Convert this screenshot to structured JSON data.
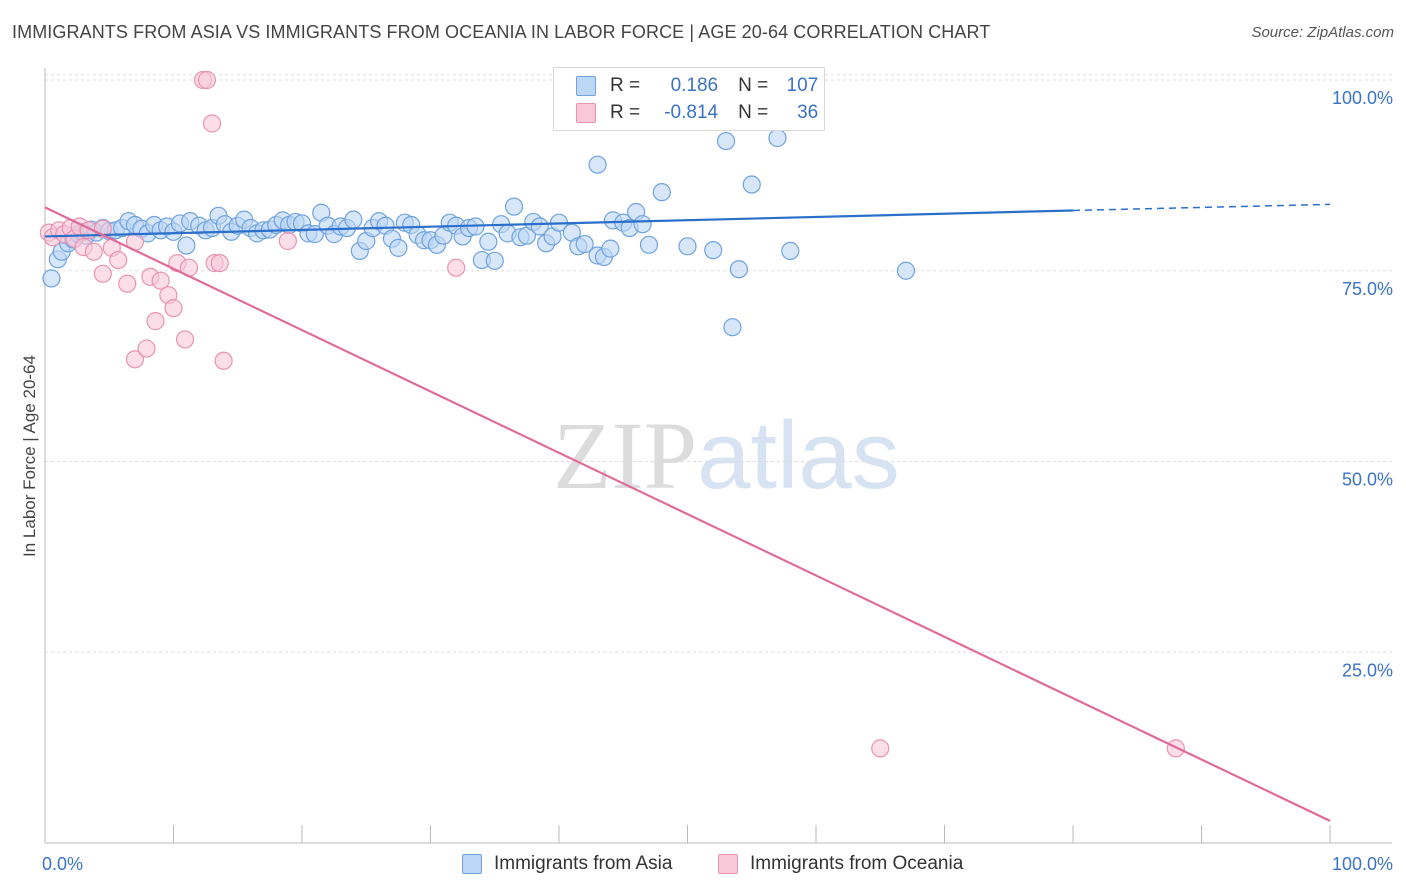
{
  "title": "IMMIGRANTS FROM ASIA VS IMMIGRANTS FROM OCEANIA IN LABOR FORCE | AGE 20-64 CORRELATION CHART",
  "source": "Source: ZipAtlas.com",
  "watermark": {
    "zip": "ZIP",
    "atlas": "atlas"
  },
  "legend": {
    "r_label": "R =",
    "n_label": "N =",
    "rows": [
      {
        "r": "0.186",
        "n": "107"
      },
      {
        "r": "-0.814",
        "n": "36"
      }
    ]
  },
  "colors": {
    "blue_fill": "#bcd6f5",
    "blue_stroke": "#6fa3e0",
    "blue_line": "#2a6fc9",
    "pink_fill": "#f9c8d8",
    "pink_stroke": "#e993b3",
    "pink_line": "#e06b98",
    "tick_label": "#3b73c4",
    "grid": "#dddddd"
  },
  "chart_data": {
    "type": "scatter",
    "title": "IMMIGRANTS FROM ASIA VS IMMIGRANTS FROM OCEANIA IN LABOR FORCE | AGE 20-64 CORRELATION CHART",
    "xlabel": "",
    "ylabel": "In Labor Force | Age 20-64",
    "xlim": [
      0,
      100
    ],
    "ylim": [
      0,
      100
    ],
    "x_tick_labels": [
      "0.0%",
      "100.0%"
    ],
    "y_ticks": [
      {
        "value": 100,
        "label": "100.0%"
      },
      {
        "value": 75,
        "label": "75.0%"
      },
      {
        "value": 50,
        "label": "50.0%"
      },
      {
        "value": 25,
        "label": "25.0%"
      }
    ],
    "grid": true,
    "legend_position": "bottom-center",
    "series": [
      {
        "name": "Immigrants from Asia",
        "color": "blue",
        "trend": {
          "x": [
            0,
            80
          ],
          "y": [
            79.5,
            82.9
          ],
          "dashed_to": [
            100,
            83.7
          ]
        },
        "points": [
          [
            0.5,
            74.0
          ],
          [
            1.0,
            76.5
          ],
          [
            1.3,
            77.5
          ],
          [
            1.8,
            78.6
          ],
          [
            2.2,
            79.1
          ],
          [
            2.6,
            79.8
          ],
          [
            2.9,
            80.1
          ],
          [
            3.2,
            79.6
          ],
          [
            3.6,
            80.4
          ],
          [
            4.0,
            80.0
          ],
          [
            4.5,
            80.6
          ],
          [
            5.0,
            80.2
          ],
          [
            5.5,
            80.3
          ],
          [
            6.0,
            80.6
          ],
          [
            6.5,
            81.5
          ],
          [
            7.0,
            81.0
          ],
          [
            7.5,
            80.5
          ],
          [
            8.0,
            79.9
          ],
          [
            8.5,
            81.0
          ],
          [
            9.0,
            80.3
          ],
          [
            9.5,
            80.8
          ],
          [
            10.0,
            80.1
          ],
          [
            10.5,
            81.2
          ],
          [
            11.0,
            78.3
          ],
          [
            11.3,
            81.5
          ],
          [
            12.0,
            80.9
          ],
          [
            12.5,
            80.3
          ],
          [
            13.0,
            80.6
          ],
          [
            13.5,
            82.2
          ],
          [
            14.0,
            81.1
          ],
          [
            14.5,
            80.1
          ],
          [
            15.0,
            80.9
          ],
          [
            15.5,
            81.7
          ],
          [
            16.0,
            80.6
          ],
          [
            16.5,
            79.9
          ],
          [
            17.0,
            80.3
          ],
          [
            17.5,
            80.4
          ],
          [
            18.0,
            81.0
          ],
          [
            18.5,
            81.6
          ],
          [
            19.0,
            81.0
          ],
          [
            19.5,
            81.4
          ],
          [
            20.0,
            81.2
          ],
          [
            20.5,
            79.9
          ],
          [
            21.0,
            79.8
          ],
          [
            21.5,
            82.6
          ],
          [
            22.0,
            80.9
          ],
          [
            22.5,
            79.8
          ],
          [
            23.0,
            80.8
          ],
          [
            23.5,
            80.6
          ],
          [
            24.0,
            81.7
          ],
          [
            24.5,
            77.6
          ],
          [
            25.0,
            78.9
          ],
          [
            25.5,
            80.6
          ],
          [
            26.0,
            81.5
          ],
          [
            26.5,
            80.9
          ],
          [
            27.0,
            79.2
          ],
          [
            27.5,
            78.0
          ],
          [
            28.0,
            81.3
          ],
          [
            28.5,
            81.0
          ],
          [
            29.0,
            79.7
          ],
          [
            29.5,
            79.0
          ],
          [
            30.0,
            79.0
          ],
          [
            30.5,
            78.4
          ],
          [
            31.0,
            79.6
          ],
          [
            31.5,
            81.3
          ],
          [
            32.0,
            80.9
          ],
          [
            32.5,
            79.5
          ],
          [
            33.0,
            80.6
          ],
          [
            33.5,
            80.8
          ],
          [
            34.0,
            76.4
          ],
          [
            34.5,
            78.8
          ],
          [
            35.0,
            76.3
          ],
          [
            35.5,
            81.1
          ],
          [
            36.0,
            79.9
          ],
          [
            36.5,
            83.4
          ],
          [
            37.0,
            79.4
          ],
          [
            37.5,
            79.6
          ],
          [
            38.0,
            81.4
          ],
          [
            38.5,
            80.8
          ],
          [
            39.0,
            78.6
          ],
          [
            39.5,
            79.5
          ],
          [
            40.0,
            81.3
          ],
          [
            41.0,
            80.0
          ],
          [
            41.5,
            78.2
          ],
          [
            42.0,
            78.5
          ],
          [
            43.0,
            77.0
          ],
          [
            43.5,
            76.8
          ],
          [
            44.0,
            77.9
          ],
          [
            44.2,
            81.6
          ],
          [
            45.0,
            81.3
          ],
          [
            45.5,
            80.6
          ],
          [
            46.0,
            82.7
          ],
          [
            46.5,
            81.1
          ],
          [
            47.0,
            78.4
          ],
          [
            48.0,
            85.3
          ],
          [
            50.0,
            78.2
          ],
          [
            52.0,
            77.7
          ],
          [
            53.0,
            92.0
          ],
          [
            54.0,
            75.2
          ],
          [
            55.0,
            86.3
          ],
          [
            53.5,
            67.6
          ],
          [
            57.0,
            92.4
          ],
          [
            58.0,
            77.6
          ],
          [
            60.0,
            100.0
          ],
          [
            67.0,
            75.0
          ],
          [
            43.0,
            88.9
          ],
          [
            48.5,
            100.0
          ]
        ]
      },
      {
        "name": "Immigrants from Oceania",
        "color": "pink",
        "trend": {
          "x": [
            0,
            100
          ],
          "y": [
            83.3,
            2.9
          ]
        },
        "points": [
          [
            0.3,
            80.0
          ],
          [
            0.6,
            79.4
          ],
          [
            1.1,
            80.3
          ],
          [
            1.5,
            79.8
          ],
          [
            2.0,
            80.6
          ],
          [
            2.3,
            79.2
          ],
          [
            2.7,
            80.8
          ],
          [
            3.0,
            78.1
          ],
          [
            3.4,
            80.3
          ],
          [
            3.8,
            77.5
          ],
          [
            4.5,
            80.5
          ],
          [
            4.5,
            74.6
          ],
          [
            5.2,
            78.0
          ],
          [
            5.7,
            76.4
          ],
          [
            6.4,
            73.3
          ],
          [
            7.0,
            78.8
          ],
          [
            7.0,
            63.4
          ],
          [
            7.9,
            64.8
          ],
          [
            8.2,
            74.2
          ],
          [
            8.6,
            68.4
          ],
          [
            9.0,
            73.7
          ],
          [
            9.6,
            71.8
          ],
          [
            10.0,
            70.1
          ],
          [
            10.3,
            76.0
          ],
          [
            10.9,
            66.0
          ],
          [
            11.2,
            75.4
          ],
          [
            12.3,
            100.0
          ],
          [
            12.6,
            100.0
          ],
          [
            13.0,
            94.3
          ],
          [
            13.2,
            76.0
          ],
          [
            13.6,
            76.0
          ],
          [
            13.9,
            63.2
          ],
          [
            18.9,
            78.9
          ],
          [
            32.0,
            75.4
          ],
          [
            65.0,
            12.4
          ],
          [
            88.0,
            12.4
          ]
        ]
      }
    ]
  },
  "bottom_legend": [
    "Immigrants from Asia",
    "Immigrants from Oceania"
  ]
}
